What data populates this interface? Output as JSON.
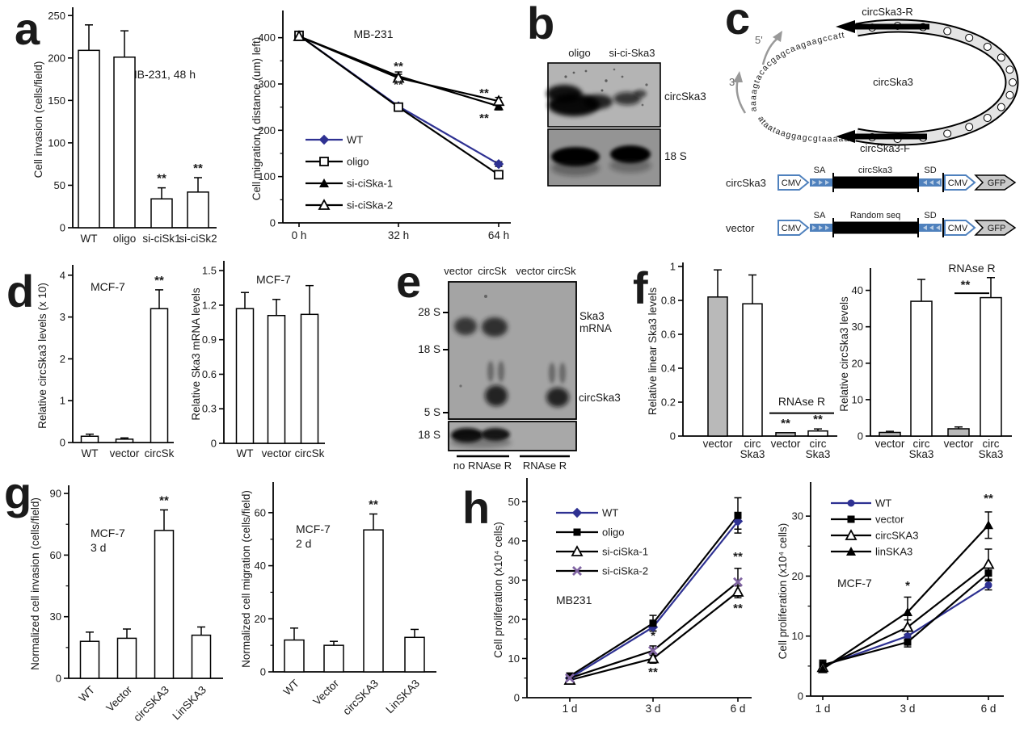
{
  "letters": {
    "a": "a",
    "b": "b",
    "c": "c",
    "d": "d",
    "e": "e",
    "f": "f",
    "g": "g",
    "h": "h"
  },
  "colors": {
    "wt_blue": "#2e3192",
    "siska2_purple": "#8064A2",
    "construct_blue": "#4F81BD",
    "gfp_gray": "#c9c9c9",
    "gray_bar": "#b9b9b9"
  },
  "chart_data": [
    {
      "id": "a_left",
      "type": "bar",
      "ylabel": "Cell invasion (cells/field)",
      "ymax": 255,
      "yticks": [
        0,
        50,
        100,
        150,
        200,
        250
      ],
      "categories": [
        "WT",
        "oligo",
        "si-ciSk1",
        "si-ciSk2"
      ],
      "values": [
        209,
        201,
        34,
        42
      ],
      "errors": [
        30,
        31,
        13,
        17
      ],
      "sig": [
        "",
        "",
        "**",
        "**"
      ],
      "annotation": [
        "MB-231, 48 h"
      ]
    },
    {
      "id": "a_right",
      "type": "line",
      "ylabel": "Cell migration ( distance (um) left)",
      "ymax": 450,
      "yticks": [
        0,
        100,
        200,
        300,
        400
      ],
      "yminor": [
        50,
        150,
        250,
        350
      ],
      "x": [
        "0 h",
        "32 h",
        "64 h"
      ],
      "series": [
        {
          "name": "WT",
          "color": "#2e3192",
          "marker": "diamond",
          "values": [
            405,
            252,
            127
          ],
          "errs": [
            5,
            5,
            5
          ]
        },
        {
          "name": "oligo",
          "color": "#000000",
          "marker": "square-open",
          "values": [
            405,
            250,
            104
          ],
          "errs": [
            5,
            5,
            8
          ]
        },
        {
          "name": "si-ciSka-1",
          "color": "#000000",
          "marker": "tri",
          "values": [
            403,
            317,
            252
          ],
          "errs": [
            4,
            9,
            8
          ]
        },
        {
          "name": "si-ciSka-2",
          "color": "#000000",
          "marker": "tri-open",
          "values": [
            403,
            313,
            263
          ],
          "errs": [
            4,
            8,
            8
          ]
        }
      ],
      "annotation": [
        "MB-231"
      ],
      "sig": [
        {
          "xi": 1,
          "v": 330,
          "t": "**"
        },
        {
          "xi": 1,
          "v": 290,
          "t": "**"
        },
        {
          "xi": 2,
          "dx": -18,
          "v": 272,
          "t": "**"
        },
        {
          "xi": 2,
          "dx": -18,
          "v": 218,
          "t": "**"
        }
      ]
    },
    {
      "id": "d_left",
      "type": "bar",
      "ylabel": "Relative circSka3 levels (x 10)",
      "ymax": 4.15,
      "yticks": [
        0,
        1,
        2,
        3,
        4
      ],
      "categories": [
        "WT",
        "vector",
        "circSk"
      ],
      "values": [
        0.15,
        0.08,
        3.2
      ],
      "errors": [
        0.05,
        0.03,
        0.45
      ],
      "sig": [
        "",
        "",
        "**"
      ],
      "annotation": [
        "MCF-7"
      ]
    },
    {
      "id": "d_right",
      "type": "bar",
      "ylabel": "Relative Ska3 mRNA levels",
      "ymax": 1.55,
      "yticks": [
        0,
        0.3,
        0.6,
        0.9,
        1.2,
        1.5
      ],
      "categories": [
        "WT",
        "vector",
        "circSk"
      ],
      "values": [
        1.17,
        1.11,
        1.12
      ],
      "errors": [
        0.14,
        0.14,
        0.25
      ],
      "sig": [
        "",
        "",
        ""
      ],
      "annotation": [
        "MCF-7"
      ]
    },
    {
      "id": "f_left",
      "type": "bar",
      "ylabel": "Relative linear Ska3 levels",
      "ymax": 1.0,
      "yticks": [
        0,
        0.2,
        0.4,
        0.6,
        0.8,
        1
      ],
      "categories": [
        "vector",
        [
          "circ",
          "Ska3"
        ],
        "vector",
        [
          "circ",
          "Ska3"
        ]
      ],
      "values": [
        0.82,
        0.78,
        0.02,
        0.03
      ],
      "errors": [
        0.16,
        0.17,
        0,
        0.012
      ],
      "fills": [
        "#b9b9b9",
        "#ffffff",
        "#b9b9b9",
        "#ffffff"
      ],
      "sig": [
        "",
        "",
        "**",
        "**"
      ],
      "overline": {
        "i1": 2,
        "i2": 3,
        "v": 0.135,
        "label": "RNAse R",
        "lv": 0.18
      }
    },
    {
      "id": "f_right",
      "type": "bar",
      "ylabel": "Relative circSka3 levels",
      "ymax": 45,
      "yticks": [
        0,
        10,
        20,
        30,
        40
      ],
      "categories": [
        "vector",
        [
          "circ",
          "Ska3"
        ],
        "vector",
        [
          "circ",
          "Ska3"
        ]
      ],
      "values": [
        1,
        37,
        2,
        38
      ],
      "errors": [
        0.3,
        6,
        0.5,
        5.5
      ],
      "fills": [
        "#b9b9b9",
        "#ffffff",
        "#b9b9b9",
        "#ffffff"
      ],
      "sig": [
        "",
        "",
        "",
        ""
      ],
      "overline": {
        "i1": 2,
        "i2": 3,
        "v": 39.2,
        "label": "RNAse R",
        "lv": 45,
        "sig": "**",
        "sv": 40.5,
        "x1o": -5,
        "x2o": -2
      }
    },
    {
      "id": "g_left",
      "type": "bar",
      "ylabel": "Normalized cell invasion (cells/field)",
      "ymax": 92,
      "yticks": [
        0,
        30,
        60,
        90
      ],
      "yminor": [
        15,
        45,
        75
      ],
      "categories": [
        "WT",
        "Vector",
        "circSKA3",
        "LinSKA3"
      ],
      "values": [
        18,
        19.5,
        72,
        21
      ],
      "errors": [
        4.5,
        4.5,
        10,
        4
      ],
      "sig": [
        "",
        "",
        "**",
        ""
      ],
      "annotation": [
        "MCF-7",
        "3 d"
      ]
    },
    {
      "id": "g_right",
      "type": "bar",
      "ylabel": "Normalized cell migration (cells/field)",
      "ymax": 70,
      "yticks": [
        0,
        20,
        40,
        60
      ],
      "yminor": [
        10,
        30,
        50
      ],
      "categories": [
        "WT",
        "Vector",
        "circSKA3",
        "LinSKA3"
      ],
      "values": [
        12,
        10,
        53.5,
        13
      ],
      "errors": [
        4.5,
        1.5,
        6,
        3
      ],
      "sig": [
        "",
        "",
        "**",
        ""
      ],
      "annotation": [
        "MCF-7",
        "2 d"
      ]
    },
    {
      "id": "h_left",
      "type": "line",
      "ylabel": "Cell proliferation (x10⁴ cells)",
      "ymax": 55,
      "yticks": [
        0,
        10,
        20,
        30,
        40,
        50
      ],
      "yminor": [
        5,
        15,
        25,
        35,
        45
      ],
      "x": [
        "1 d",
        "3 d",
        "6 d"
      ],
      "series": [
        {
          "name": "WT",
          "color": "#2e3192",
          "marker": "diamond",
          "values": [
            5,
            18,
            45
          ],
          "errs": [
            0.8,
            1,
            2
          ]
        },
        {
          "name": "oligo",
          "color": "#000000",
          "marker": "square",
          "values": [
            5.5,
            19,
            46.5
          ],
          "errs": [
            0.8,
            2,
            4.5
          ]
        },
        {
          "name": "si-ciSka-1",
          "color": "#000000",
          "marker": "tri-open",
          "values": [
            4.5,
            10,
            27
          ],
          "errs": [
            0.8,
            1.2,
            1.5
          ]
        },
        {
          "name": "si-ciSka-2",
          "color": "#000000",
          "marker": "x",
          "mcolor": "#8064A2",
          "values": [
            5,
            12,
            29.5
          ],
          "errs": [
            0.8,
            1.2,
            3.5
          ]
        }
      ],
      "annotation": [
        "MB231"
      ],
      "sig": [
        {
          "xi": 1,
          "v": 14.8,
          "t": "*"
        },
        {
          "xi": 1,
          "v": 5.6,
          "t": "**"
        },
        {
          "xi": 2,
          "v": 35,
          "t": "**"
        },
        {
          "xi": 2,
          "v": 21.8,
          "t": "**"
        }
      ]
    },
    {
      "id": "h_right",
      "type": "line",
      "ylabel": "Cell proliferation (x10⁴ cells)",
      "ymax": 35,
      "yticks": [
        0,
        10,
        20,
        30
      ],
      "yminor": [
        5,
        15,
        25
      ],
      "x": [
        "1 d",
        "3 d",
        "6 d"
      ],
      "series": [
        {
          "name": "WT",
          "color": "#2e3192",
          "marker": "circle",
          "values": [
            5,
            10,
            18.5
          ],
          "errs": [
            0.8,
            0.8,
            0.8
          ]
        },
        {
          "name": "vector",
          "color": "#000000",
          "marker": "square",
          "values": [
            5.2,
            9,
            20.5
          ],
          "errs": [
            0.8,
            0.8,
            1.3
          ]
        },
        {
          "name": "circSKA3",
          "color": "#000000",
          "marker": "tri-open",
          "values": [
            4.8,
            11.5,
            22
          ],
          "errs": [
            0.5,
            1.2,
            2.5
          ]
        },
        {
          "name": "linSKA3",
          "color": "#000000",
          "marker": "tri",
          "values": [
            4.5,
            14,
            28.5
          ],
          "errs": [
            0.5,
            2.5,
            2.2
          ]
        }
      ],
      "annotation": [
        "MCF-7"
      ],
      "sig": [
        {
          "xi": 1,
          "v": 17.8,
          "t": "*"
        },
        {
          "xi": 2,
          "v": 32.3,
          "t": "**"
        }
      ]
    }
  ],
  "gel_b": {
    "lanes": [
      "oligo",
      "si-ci-Ska3"
    ],
    "band_labels": [
      "circSka3",
      "18 S"
    ]
  },
  "panel_c": {
    "center": "circSka3",
    "primer_r": "circSka3-R",
    "primer_f": "circSka3-F",
    "p5": "5'",
    "p3": "3'",
    "seq_top": "aaaagtacacgagcaagaagccatt",
    "seq_bottom": "ataataaggagcgtaaaaat",
    "cmv": "CMV",
    "sa": "SA",
    "sd": "SD",
    "gfp": "GFP",
    "constructs": [
      {
        "label": "circSka3",
        "insert": "circSka3"
      },
      {
        "label": "vector",
        "insert": "Random seq"
      }
    ]
  },
  "gel_e": {
    "lanes": [
      "vector",
      "circSk",
      "vector",
      "circSk"
    ],
    "markers": [
      "28 S",
      "18 S",
      "5 S"
    ],
    "marker_bottom": "18 S",
    "band1_line1": "Ska3",
    "band1_line2": "mRNA",
    "band2": "circSka3",
    "groups": [
      "no RNAse R",
      "RNAse R"
    ]
  }
}
